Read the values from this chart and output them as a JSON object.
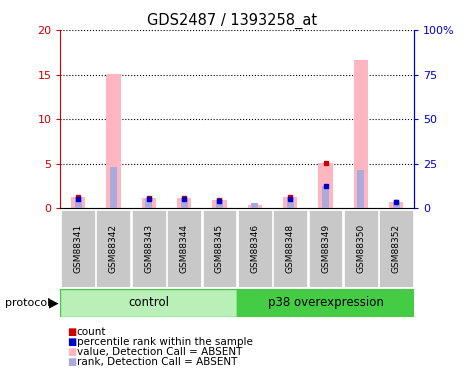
{
  "title": "GDS2487 / 1393258_at",
  "samples": [
    "GSM88341",
    "GSM88342",
    "GSM88343",
    "GSM88344",
    "GSM88345",
    "GSM88346",
    "GSM88348",
    "GSM88349",
    "GSM88350",
    "GSM88352"
  ],
  "pink_bars": [
    1.2,
    15.1,
    1.1,
    1.1,
    0.9,
    0.3,
    1.2,
    5.1,
    16.6,
    0.7
  ],
  "blue_bars_pct": [
    5.0,
    23.0,
    5.0,
    5.0,
    4.0,
    3.0,
    5.0,
    12.5,
    21.5,
    3.5
  ],
  "red_markers": [
    1.2,
    0.0,
    1.1,
    1.1,
    0.9,
    0.0,
    1.2,
    5.1,
    0.0,
    0.7
  ],
  "blue_markers_pct": [
    5.0,
    0.0,
    5.0,
    5.0,
    4.0,
    0.0,
    5.0,
    12.5,
    0.0,
    3.5
  ],
  "ylim_left": [
    0,
    20
  ],
  "ylim_right": [
    0,
    100
  ],
  "yticks_left": [
    0,
    5,
    10,
    15,
    20
  ],
  "yticks_right": [
    0,
    25,
    50,
    75,
    100
  ],
  "ytick_labels_left": [
    "0",
    "5",
    "10",
    "15",
    "20"
  ],
  "ytick_labels_right": [
    "0",
    "25",
    "50",
    "75",
    "100%"
  ],
  "left_axis_color": "#cc0000",
  "right_axis_color": "#0000cc",
  "group_bg_light": "#b8f0b8",
  "group_bg_dark": "#44cc44",
  "header_bg": "#c8c8c8",
  "ctrl_label": "control",
  "p38_label": "p38 overexpression",
  "ctrl_count": 5,
  "p38_count": 5,
  "legend_items": [
    {
      "label": "count",
      "color": "#cc0000"
    },
    {
      "label": "percentile rank within the sample",
      "color": "#0000cc"
    },
    {
      "label": "value, Detection Call = ABSENT",
      "color": "#ffb6c1"
    },
    {
      "label": "rank, Detection Call = ABSENT",
      "color": "#aaaadd"
    }
  ]
}
